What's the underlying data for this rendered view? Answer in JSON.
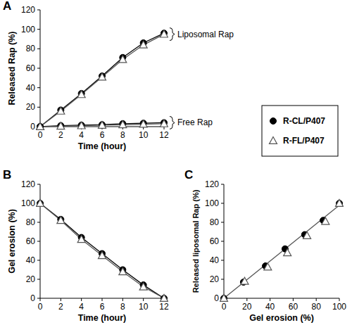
{
  "chart_data": [
    {
      "type": "line",
      "title": "A",
      "x_label": "Time (hour)",
      "y_label": "Released Rap (%)",
      "x": [
        0,
        2,
        4,
        6,
        8,
        10,
        12
      ],
      "xlim": [
        0,
        12
      ],
      "xticks": [
        0,
        2,
        4,
        6,
        8,
        10,
        12
      ],
      "ylim": [
        0,
        120
      ],
      "yticks": [
        0,
        20,
        40,
        60,
        80,
        100,
        120
      ],
      "grid": false,
      "legend": "right",
      "series": [
        {
          "name": "R-CL/P407",
          "color": "#000000",
          "marker": "circle",
          "line_style": "solid",
          "values": [
            0,
            17,
            34,
            52,
            71,
            86,
            96
          ]
        },
        {
          "name": "R-FL/P407",
          "color": "#555555",
          "marker": "triangle",
          "line_style": "solid",
          "values": [
            0,
            16,
            33,
            51,
            69,
            84,
            95
          ]
        },
        {
          "color": "#000000",
          "marker": "circle",
          "line_style": "solid",
          "values": [
            0,
            1,
            1.5,
            2,
            3,
            3.5,
            4
          ]
        },
        {
          "color": "#555555",
          "marker": "triangle",
          "line_style": "solid",
          "values": [
            0,
            0.5,
            1,
            1.5,
            2,
            2.5,
            3
          ]
        }
      ],
      "annotations": [
        {
          "text": "Liposomal Rap",
          "x": 12,
          "y": 95
        },
        {
          "text": "Free Rap",
          "x": 12,
          "y": 4
        }
      ]
    },
    {
      "type": "line",
      "title": "B",
      "x_label": "Time (hour)",
      "y_label": "Gel erosion (%)",
      "x": [
        0,
        2,
        4,
        6,
        8,
        10,
        12
      ],
      "xlim": [
        0,
        12
      ],
      "xticks": [
        0,
        2,
        4,
        6,
        8,
        10,
        12
      ],
      "ylim": [
        0,
        120
      ],
      "yticks": [
        0,
        20,
        40,
        60,
        80,
        100,
        120
      ],
      "grid": false,
      "series": [
        {
          "color": "#000000",
          "marker": "circle",
          "line_style": "solid",
          "values": [
            100,
            83,
            64,
            47,
            30,
            14,
            0
          ]
        },
        {
          "color": "#555555",
          "marker": "triangle",
          "line_style": "solid",
          "values": [
            100,
            82,
            62,
            45,
            28,
            12,
            0
          ]
        }
      ]
    },
    {
      "type": "scatter",
      "title": "C",
      "x_label": "Gel erosion (%)",
      "y_label": "Released liposomal Rap (%)",
      "xlim": [
        0,
        100
      ],
      "xticks": [
        0,
        20,
        40,
        60,
        80,
        100
      ],
      "ylim": [
        0,
        120
      ],
      "yticks": [
        0,
        20,
        40,
        60,
        80,
        100,
        120
      ],
      "grid": false,
      "series": [
        {
          "color": "#555555",
          "marker": "none",
          "line_style": "solid",
          "x": [
            0,
            100
          ],
          "values": [
            0,
            98
          ]
        },
        {
          "color": "#000000",
          "marker": "circle",
          "line_style": "none",
          "x": [
            0,
            17,
            36,
            53,
            70,
            86,
            100
          ],
          "values": [
            0,
            17,
            34,
            52,
            67,
            82,
            100
          ]
        },
        {
          "color": "#555555",
          "marker": "triangle",
          "line_style": "none",
          "x": [
            0,
            18,
            38,
            55,
            72,
            88,
            100
          ],
          "values": [
            0,
            18,
            33,
            48,
            66,
            81,
            100
          ]
        }
      ]
    }
  ]
}
